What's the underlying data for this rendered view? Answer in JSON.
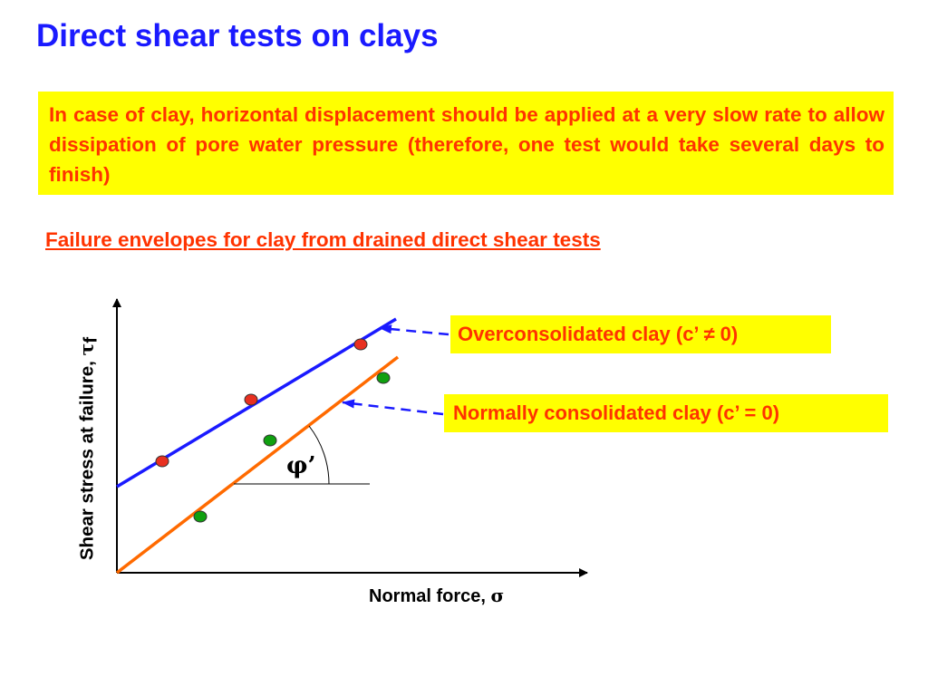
{
  "slide": {
    "title": "Direct shear tests on clays",
    "intro": "In case of clay, horizontal displacement should be applied at a very slow rate to allow dissipation of pore water pressure (therefore, one test would take several days to finish)",
    "subtitle": "Failure envelopes for clay from drained direct shear tests"
  },
  "diagram": {
    "y_axis_label": "Shear stress at failure, ",
    "y_axis_symbol": "τ",
    "y_axis_subscript": "f",
    "x_axis_label": "Normal force, ",
    "x_axis_symbol": "σ",
    "angle_label": "φ’",
    "callouts": {
      "overconsolidated": "Overconsolidated clay (c’ ≠ 0)",
      "normally_consolidated": "Normally consolidated clay (c’ = 0)"
    },
    "colors": {
      "overconsolidated_line": "#1a1aff",
      "normally_consolidated_line": "#ff6a00",
      "overconsolidated_points": "#e83020",
      "normally_consolidated_points": "#10a010",
      "callout_bg": "#ffff00",
      "callout_text": "#ff3300",
      "leader_line": "#1a1aff"
    }
  }
}
